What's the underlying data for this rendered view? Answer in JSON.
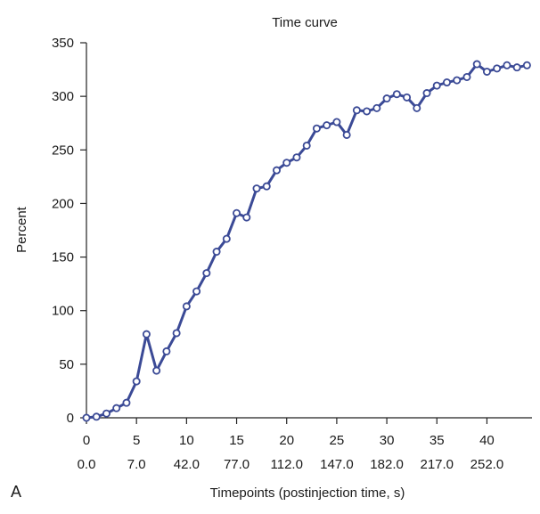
{
  "panel_label": "A",
  "chart_data": {
    "type": "line",
    "title": "Time curve",
    "xlabel": "Timepoints (postinjection time, s)",
    "ylabel": "Percent",
    "ylim": [
      0,
      350
    ],
    "xlim": [
      0,
      44.5
    ],
    "grid": false,
    "y_ticks": [
      0,
      50,
      100,
      150,
      200,
      250,
      300,
      350
    ],
    "x_ticks": [
      0,
      5,
      10,
      15,
      20,
      25,
      30,
      35,
      40
    ],
    "x_tick_labels_time": [
      "0.0",
      "7.0",
      "42.0",
      "77.0",
      "112.0",
      "147.0",
      "182.0",
      "217.0",
      "252.0"
    ],
    "line_color": "#3b4a96",
    "marker": "open-circle",
    "series": [
      {
        "x": [
          0,
          1,
          2,
          3,
          4,
          5,
          6,
          7,
          8,
          9,
          10,
          11,
          12,
          13,
          14,
          15,
          16,
          17,
          18,
          19,
          20,
          21,
          22,
          23,
          24,
          25,
          26,
          27,
          28,
          29,
          30,
          31,
          32,
          33,
          34,
          35,
          36,
          37,
          38,
          39,
          40,
          41,
          42,
          43,
          44
        ],
        "values": [
          0,
          1,
          4,
          9,
          14,
          34,
          78,
          44,
          62,
          79,
          104,
          118,
          135,
          155,
          167,
          191,
          187,
          214,
          216,
          231,
          238,
          243,
          254,
          270,
          273,
          276,
          264,
          287,
          286,
          289,
          298,
          302,
          299,
          289,
          303,
          310,
          313,
          315,
          318,
          330,
          323,
          326,
          329,
          327,
          329
        ]
      }
    ]
  }
}
